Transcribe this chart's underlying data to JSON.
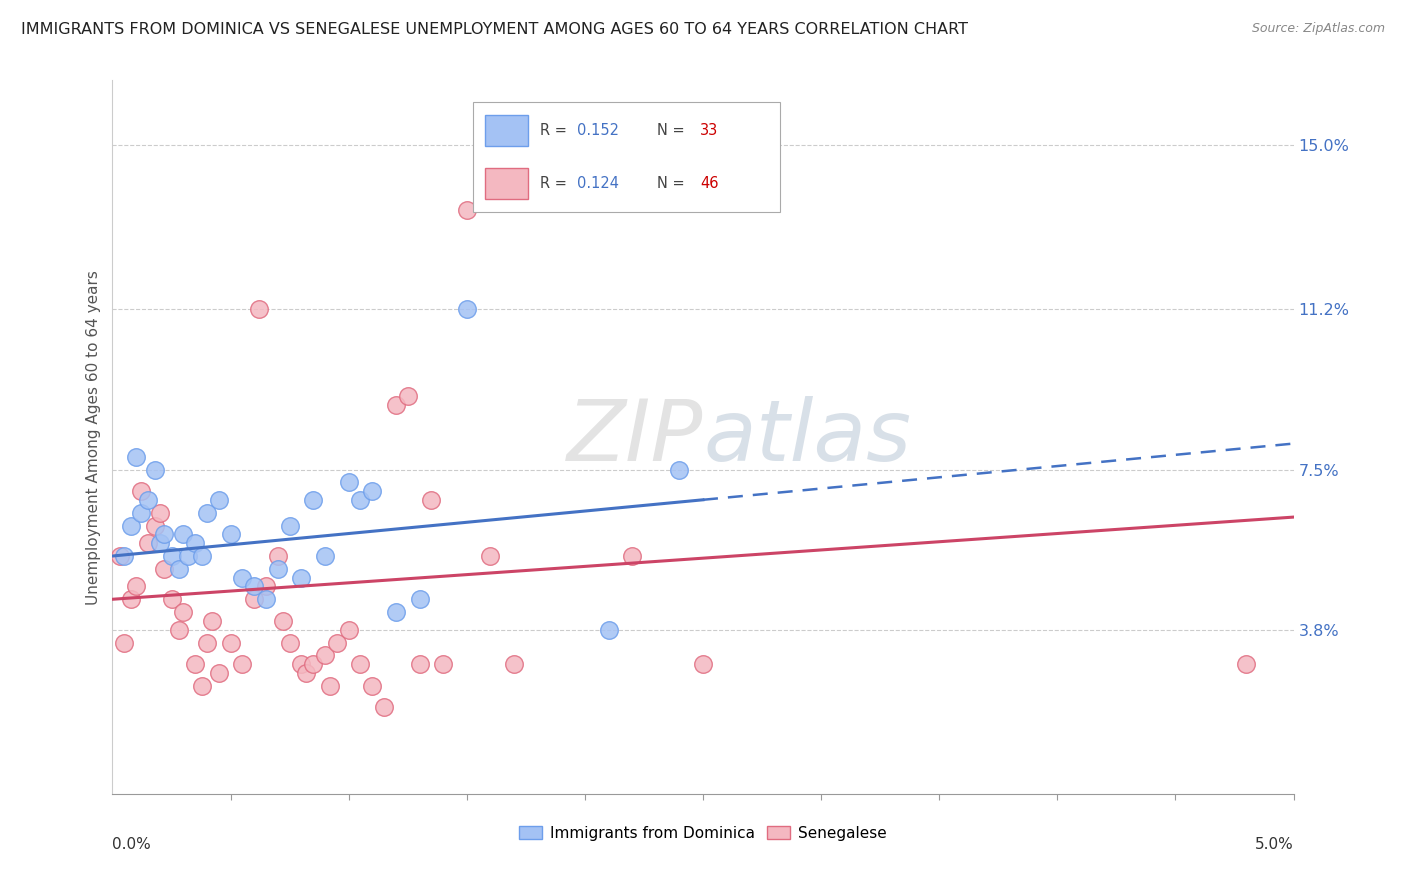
{
  "title": "IMMIGRANTS FROM DOMINICA VS SENEGALESE UNEMPLOYMENT AMONG AGES 60 TO 64 YEARS CORRELATION CHART",
  "source": "Source: ZipAtlas.com",
  "ylabel": "Unemployment Among Ages 60 to 64 years",
  "yticks": [
    3.8,
    7.5,
    11.2,
    15.0
  ],
  "ytick_labels": [
    "3.8%",
    "7.5%",
    "11.2%",
    "15.0%"
  ],
  "xlim": [
    0.0,
    5.0
  ],
  "ylim": [
    0.0,
    16.5
  ],
  "label1": "Immigrants from Dominica",
  "label2": "Senegalese",
  "color1": "#a4c2f4",
  "color2": "#f4b8c1",
  "edge_color1": "#6d9eeb",
  "edge_color2": "#e06c80",
  "line_color1": "#4472c4",
  "line_color2": "#cc4466",
  "watermark": "ZIPatlas",
  "blue_x": [
    0.05,
    0.08,
    0.1,
    0.12,
    0.15,
    0.18,
    0.2,
    0.22,
    0.25,
    0.28,
    0.3,
    0.32,
    0.35,
    0.38,
    0.4,
    0.45,
    0.5,
    0.55,
    0.6,
    0.65,
    0.7,
    0.75,
    0.8,
    0.85,
    0.9,
    1.0,
    1.05,
    1.1,
    1.2,
    1.3,
    1.5,
    2.1,
    2.4
  ],
  "blue_y": [
    5.5,
    6.2,
    7.8,
    6.5,
    6.8,
    7.5,
    5.8,
    6.0,
    5.5,
    5.2,
    6.0,
    5.5,
    5.8,
    5.5,
    6.5,
    6.8,
    6.0,
    5.0,
    4.8,
    4.5,
    5.2,
    6.2,
    5.0,
    6.8,
    5.5,
    7.2,
    6.8,
    7.0,
    4.2,
    4.5,
    11.2,
    3.8,
    7.5
  ],
  "pink_x": [
    0.03,
    0.05,
    0.08,
    0.1,
    0.12,
    0.15,
    0.18,
    0.2,
    0.22,
    0.25,
    0.28,
    0.3,
    0.35,
    0.38,
    0.4,
    0.42,
    0.45,
    0.5,
    0.55,
    0.6,
    0.62,
    0.65,
    0.7,
    0.72,
    0.75,
    0.8,
    0.82,
    0.85,
    0.9,
    0.92,
    0.95,
    1.0,
    1.05,
    1.1,
    1.15,
    1.2,
    1.25,
    1.3,
    1.35,
    1.4,
    1.5,
    1.6,
    1.7,
    2.2,
    2.5,
    4.8
  ],
  "pink_y": [
    5.5,
    3.5,
    4.5,
    4.8,
    7.0,
    5.8,
    6.2,
    6.5,
    5.2,
    4.5,
    3.8,
    4.2,
    3.0,
    2.5,
    3.5,
    4.0,
    2.8,
    3.5,
    3.0,
    4.5,
    11.2,
    4.8,
    5.5,
    4.0,
    3.5,
    3.0,
    2.8,
    3.0,
    3.2,
    2.5,
    3.5,
    3.8,
    3.0,
    2.5,
    2.0,
    9.0,
    9.2,
    3.0,
    6.8,
    3.0,
    13.5,
    5.5,
    3.0,
    5.5,
    3.0,
    3.0
  ],
  "blue_slope": 0.52,
  "blue_intercept": 5.5,
  "pink_slope": 0.38,
  "pink_intercept": 4.5,
  "blue_dash_start": 2.5,
  "blue_dash_end": 5.0
}
